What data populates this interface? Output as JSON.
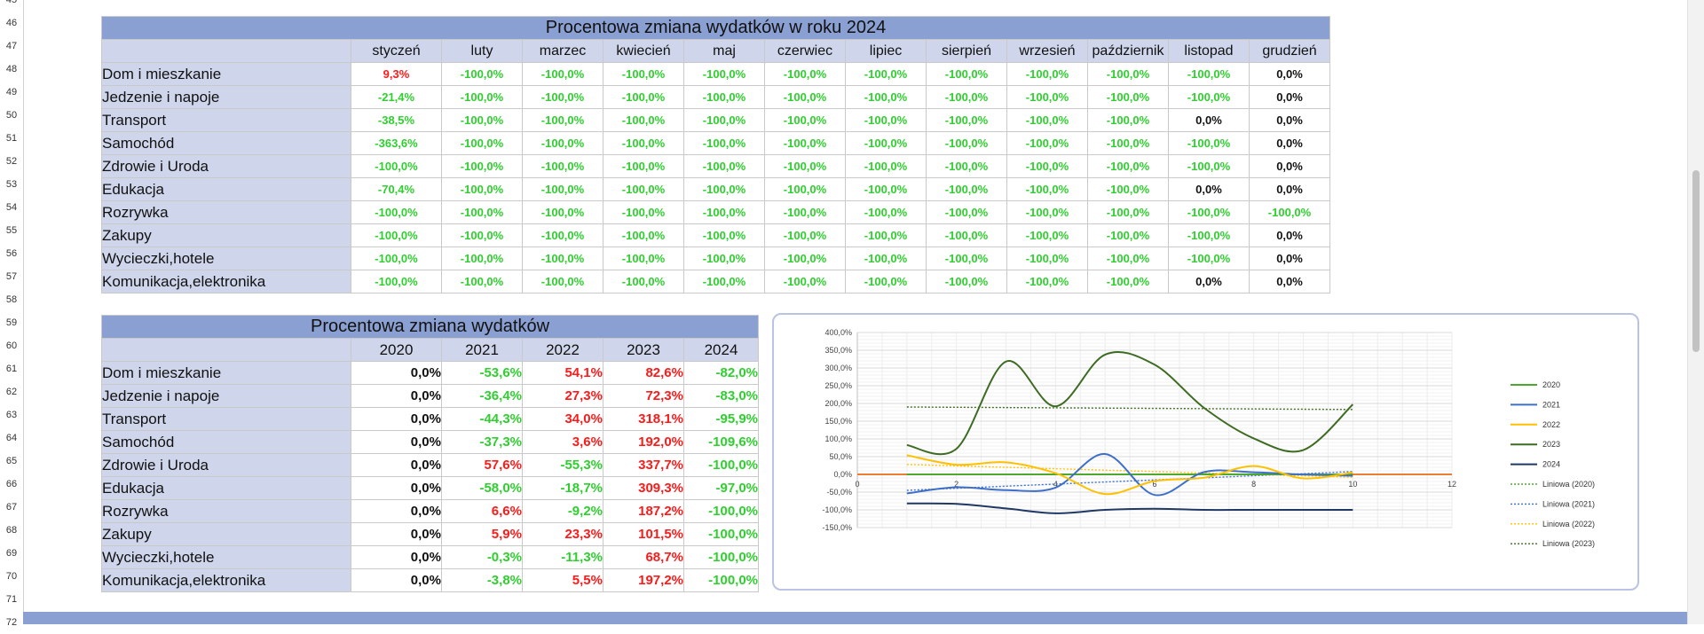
{
  "rows": [
    "45",
    "46",
    "47",
    "48",
    "49",
    "50",
    "51",
    "52",
    "53",
    "54",
    "55",
    "56",
    "57",
    "58",
    "59",
    "60",
    "61",
    "62",
    "63",
    "64",
    "65",
    "66",
    "67",
    "68",
    "69",
    "70",
    "71",
    "72"
  ],
  "table1": {
    "title": "Procentowa zmiana wydatków w roku 2024",
    "months": [
      "styczeń",
      "luty",
      "marzec",
      "kwiecień",
      "maj",
      "czerwiec",
      "lipiec",
      "sierpień",
      "wrzesień",
      "październik",
      "listopad",
      "grudzień"
    ],
    "rows": [
      {
        "label": "Dom i mieszkanie",
        "values": [
          "9,3%",
          "-100,0%",
          "-100,0%",
          "-100,0%",
          "-100,0%",
          "-100,0%",
          "-100,0%",
          "-100,0%",
          "-100,0%",
          "-100,0%",
          "-100,0%",
          "0,0%"
        ]
      },
      {
        "label": "Jedzenie i napoje",
        "values": [
          "-21,4%",
          "-100,0%",
          "-100,0%",
          "-100,0%",
          "-100,0%",
          "-100,0%",
          "-100,0%",
          "-100,0%",
          "-100,0%",
          "-100,0%",
          "-100,0%",
          "0,0%"
        ]
      },
      {
        "label": "Transport",
        "values": [
          "-38,5%",
          "-100,0%",
          "-100,0%",
          "-100,0%",
          "-100,0%",
          "-100,0%",
          "-100,0%",
          "-100,0%",
          "-100,0%",
          "-100,0%",
          "0,0%",
          "0,0%"
        ]
      },
      {
        "label": "Samochód",
        "values": [
          "-363,6%",
          "-100,0%",
          "-100,0%",
          "-100,0%",
          "-100,0%",
          "-100,0%",
          "-100,0%",
          "-100,0%",
          "-100,0%",
          "-100,0%",
          "-100,0%",
          "0,0%"
        ]
      },
      {
        "label": "Zdrowie i Uroda",
        "values": [
          "-100,0%",
          "-100,0%",
          "-100,0%",
          "-100,0%",
          "-100,0%",
          "-100,0%",
          "-100,0%",
          "-100,0%",
          "-100,0%",
          "-100,0%",
          "-100,0%",
          "0,0%"
        ]
      },
      {
        "label": "Edukacja",
        "values": [
          "-70,4%",
          "-100,0%",
          "-100,0%",
          "-100,0%",
          "-100,0%",
          "-100,0%",
          "-100,0%",
          "-100,0%",
          "-100,0%",
          "-100,0%",
          "0,0%",
          "0,0%"
        ]
      },
      {
        "label": "Rozrywka",
        "values": [
          "-100,0%",
          "-100,0%",
          "-100,0%",
          "-100,0%",
          "-100,0%",
          "-100,0%",
          "-100,0%",
          "-100,0%",
          "-100,0%",
          "-100,0%",
          "-100,0%",
          "-100,0%"
        ]
      },
      {
        "label": "Zakupy",
        "values": [
          "-100,0%",
          "-100,0%",
          "-100,0%",
          "-100,0%",
          "-100,0%",
          "-100,0%",
          "-100,0%",
          "-100,0%",
          "-100,0%",
          "-100,0%",
          "-100,0%",
          "0,0%"
        ]
      },
      {
        "label": "Wycieczki,hotele",
        "values": [
          "-100,0%",
          "-100,0%",
          "-100,0%",
          "-100,0%",
          "-100,0%",
          "-100,0%",
          "-100,0%",
          "-100,0%",
          "-100,0%",
          "-100,0%",
          "-100,0%",
          "0,0%"
        ]
      },
      {
        "label": "Komunikacja,elektronika",
        "values": [
          "-100,0%",
          "-100,0%",
          "-100,0%",
          "-100,0%",
          "-100,0%",
          "-100,0%",
          "-100,0%",
          "-100,0%",
          "-100,0%",
          "-100,0%",
          "0,0%",
          "0,0%"
        ]
      }
    ]
  },
  "table2": {
    "title": "Procentowa zmiana wydatków",
    "years": [
      "2020",
      "2021",
      "2022",
      "2023",
      "2024"
    ],
    "rows": [
      {
        "label": "Dom i mieszkanie",
        "values": [
          "0,0%",
          "-53,6%",
          "54,1%",
          "82,6%",
          "-82,0%"
        ]
      },
      {
        "label": "Jedzenie i napoje",
        "values": [
          "0,0%",
          "-36,4%",
          "27,3%",
          "72,3%",
          "-83,0%"
        ]
      },
      {
        "label": "Transport",
        "values": [
          "0,0%",
          "-44,3%",
          "34,0%",
          "318,1%",
          "-95,9%"
        ]
      },
      {
        "label": "Samochód",
        "values": [
          "0,0%",
          "-37,3%",
          "3,6%",
          "192,0%",
          "-109,6%"
        ]
      },
      {
        "label": "Zdrowie i Uroda",
        "values": [
          "0,0%",
          "57,6%",
          "-55,3%",
          "337,7%",
          "-100,0%"
        ]
      },
      {
        "label": "Edukacja",
        "values": [
          "0,0%",
          "-58,0%",
          "-18,7%",
          "309,3%",
          "-97,0%"
        ]
      },
      {
        "label": "Rozrywka",
        "values": [
          "0,0%",
          "6,6%",
          "-9,2%",
          "187,2%",
          "-100,0%"
        ]
      },
      {
        "label": "Zakupy",
        "values": [
          "0,0%",
          "5,9%",
          "23,3%",
          "101,5%",
          "-100,0%"
        ]
      },
      {
        "label": "Wycieczki,hotele",
        "values": [
          "0,0%",
          "-0,3%",
          "-11,3%",
          "68,7%",
          "-100,0%"
        ]
      },
      {
        "label": "Komunikacja,elektronika",
        "values": [
          "0,0%",
          "-3,8%",
          "5,5%",
          "197,2%",
          "-100,0%"
        ]
      }
    ]
  },
  "colors": {
    "positive": "#ff1a1a",
    "negative": "#2fcf2f",
    "header": "#8ba0d2",
    "header_light": "#cfd6ec"
  },
  "chart_data": {
    "type": "scatter",
    "title": "",
    "xlabel": "",
    "ylabel": "",
    "xlim": [
      0,
      12
    ],
    "ylim": [
      -150,
      400
    ],
    "x_ticks": [
      "0",
      "2",
      "4",
      "6",
      "8",
      "10",
      "12"
    ],
    "y_ticks": [
      "400,0%",
      "350,0%",
      "300,0%",
      "250,0%",
      "200,0%",
      "150,0%",
      "100,0%",
      "50,0%",
      "0,0%",
      "-50,0%",
      "-100,0%",
      "-150,0%"
    ],
    "grid": true,
    "legend_position": "right",
    "x": [
      1,
      2,
      3,
      4,
      5,
      6,
      7,
      8,
      9,
      10
    ],
    "series": [
      {
        "name": "2020",
        "color": "#4ea72e",
        "style": "solid",
        "values": [
          0,
          0,
          0,
          0,
          0,
          0,
          0,
          0,
          0,
          0
        ]
      },
      {
        "name": "2021",
        "color": "#3d6fc8",
        "style": "solid",
        "values": [
          -53.6,
          -36.4,
          -44.3,
          -37.3,
          57.6,
          -58.0,
          6.6,
          5.9,
          -0.3,
          -3.8
        ]
      },
      {
        "name": "2022",
        "color": "#ffc000",
        "style": "solid",
        "values": [
          54.1,
          27.3,
          34.0,
          3.6,
          -55.3,
          -18.7,
          -9.2,
          23.3,
          -11.3,
          5.5
        ]
      },
      {
        "name": "2023",
        "color": "#3d6b22",
        "style": "solid",
        "values": [
          82.6,
          72.3,
          318.1,
          192.0,
          337.7,
          309.3,
          187.2,
          101.5,
          68.7,
          197.2
        ]
      },
      {
        "name": "2024",
        "color": "#1f3864",
        "style": "solid",
        "values": [
          -82.0,
          -83.0,
          -95.9,
          -109.6,
          -100.0,
          -97.0,
          -100.0,
          -100.0,
          -100.0,
          -100.0
        ]
      },
      {
        "name": "Liniowa (2020)",
        "color": "#4ea72e",
        "style": "dotted",
        "trend": [
          0,
          0
        ]
      },
      {
        "name": "Liniowa (2021)",
        "color": "#3d6fc8",
        "style": "dotted",
        "trend": [
          -45,
          8
        ]
      },
      {
        "name": "Liniowa (2022)",
        "color": "#ffc000",
        "style": "dotted",
        "trend": [
          28,
          -8
        ]
      },
      {
        "name": "Liniowa (2023)",
        "color": "#3d6b22",
        "style": "dotted",
        "trend": [
          190,
          183
        ]
      }
    ],
    "zero_line_color": "#ed7d31"
  }
}
